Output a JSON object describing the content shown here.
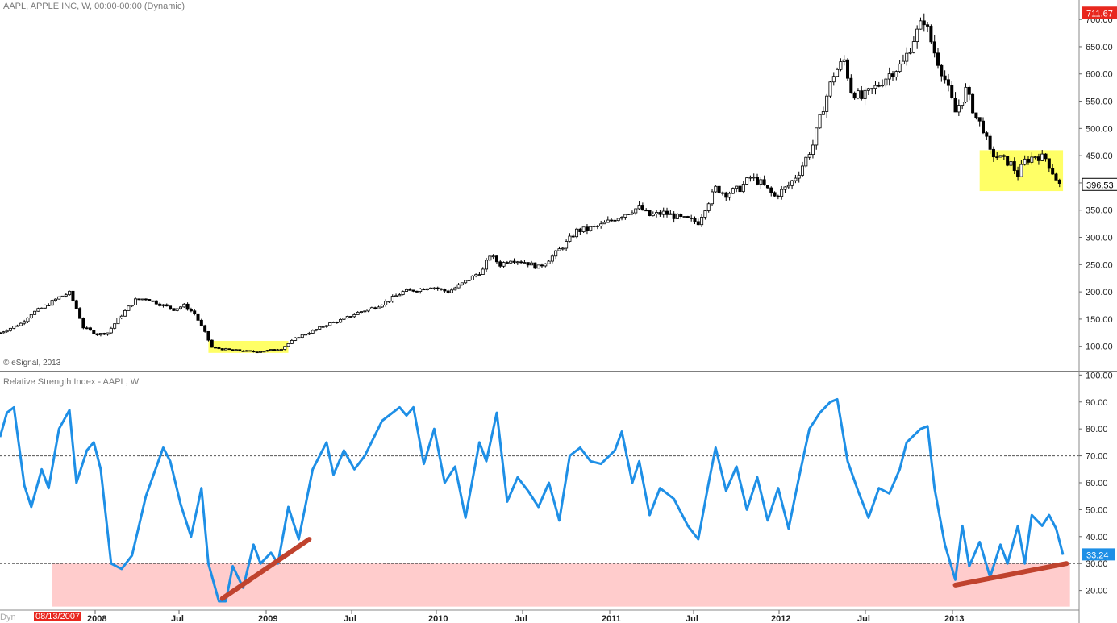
{
  "header": {
    "price_title": "AAPL, APPLE INC, W, 00:00-00:00 (Dynamic)",
    "rsi_title": "Relative Strength Index - AAPL, W",
    "copyright": "© eSignal, 2013",
    "dyn_label": "Dyn",
    "start_date": "08/13/2007"
  },
  "colors": {
    "rsi_line": "#1e8fe6",
    "trend_line": "#c0432e",
    "highlight_yellow": "#ffff66",
    "oversold_zone": "#ffcccc",
    "high_badge": "#e8271e",
    "rsi_badge": "#1e8fe6"
  },
  "chart_data": [
    {
      "type": "candlestick",
      "title": "AAPL, APPLE INC, W, 00:00-00:00 (Dynamic)",
      "ylim": [
        70,
        715
      ],
      "y_ticks": [
        "100.00",
        "150.00",
        "200.00",
        "250.00",
        "300.00",
        "350.00",
        "400.00",
        "450.00",
        "500.00",
        "550.00",
        "600.00",
        "650.00",
        "700.00"
      ],
      "x_ticks": [
        "2008",
        "Jul",
        "2009",
        "Jul",
        "2010",
        "Jul",
        "2011",
        "Jul",
        "2012",
        "Jul",
        "2013"
      ],
      "last_price": "396.53",
      "high_price": "711.67",
      "x_start": "2007-08-13",
      "x_end": "2013-04-15",
      "close_series": [
        [
          "2007-08-13",
          125
        ],
        [
          "2007-09-24",
          142
        ],
        [
          "2007-10-15",
          160
        ],
        [
          "2007-11-05",
          170
        ],
        [
          "2007-12-10",
          190
        ],
        [
          "2007-12-31",
          198
        ],
        [
          "2008-01-14",
          170
        ],
        [
          "2008-01-28",
          135
        ],
        [
          "2008-02-25",
          122
        ],
        [
          "2008-03-17",
          125
        ],
        [
          "2008-04-07",
          150
        ],
        [
          "2008-04-28",
          172
        ],
        [
          "2008-05-12",
          185
        ],
        [
          "2008-06-02",
          188
        ],
        [
          "2008-07-07",
          175
        ],
        [
          "2008-07-28",
          168
        ],
        [
          "2008-08-18",
          175
        ],
        [
          "2008-09-08",
          160
        ],
        [
          "2008-09-29",
          125
        ],
        [
          "2008-10-13",
          98
        ],
        [
          "2008-11-10",
          94
        ],
        [
          "2008-12-08",
          92
        ],
        [
          "2009-01-05",
          90
        ],
        [
          "2009-02-02",
          92
        ],
        [
          "2009-03-02",
          96
        ],
        [
          "2009-03-16",
          105
        ],
        [
          "2009-04-06",
          118
        ],
        [
          "2009-05-04",
          128
        ],
        [
          "2009-06-01",
          140
        ],
        [
          "2009-07-06",
          150
        ],
        [
          "2009-08-03",
          162
        ],
        [
          "2009-09-07",
          172
        ],
        [
          "2009-10-05",
          185
        ],
        [
          "2009-11-02",
          200
        ],
        [
          "2009-12-07",
          205
        ],
        [
          "2009-12-28",
          210
        ],
        [
          "2010-02-01",
          200
        ],
        [
          "2010-03-01",
          215
        ],
        [
          "2010-04-12",
          240
        ],
        [
          "2010-04-26",
          268
        ],
        [
          "2010-05-17",
          250
        ],
        [
          "2010-06-07",
          260
        ],
        [
          "2010-07-05",
          255
        ],
        [
          "2010-08-02",
          245
        ],
        [
          "2010-08-30",
          265
        ],
        [
          "2010-09-27",
          290
        ],
        [
          "2010-10-18",
          312
        ],
        [
          "2010-11-08",
          315
        ],
        [
          "2010-12-06",
          322
        ],
        [
          "2011-01-03",
          335
        ],
        [
          "2011-02-07",
          350
        ],
        [
          "2011-02-21",
          355
        ],
        [
          "2011-03-14",
          340
        ],
        [
          "2011-04-11",
          345
        ],
        [
          "2011-05-16",
          335
        ],
        [
          "2011-06-20",
          328
        ],
        [
          "2011-07-04",
          355
        ],
        [
          "2011-07-25",
          390
        ],
        [
          "2011-08-15",
          380
        ],
        [
          "2011-09-12",
          390
        ],
        [
          "2011-10-03",
          410
        ],
        [
          "2011-10-24",
          400
        ],
        [
          "2011-11-21",
          375
        ],
        [
          "2011-12-19",
          395
        ],
        [
          "2012-01-09",
          420
        ],
        [
          "2012-02-06",
          470
        ],
        [
          "2012-02-27",
          540
        ],
        [
          "2012-03-19",
          600
        ],
        [
          "2012-04-09",
          625
        ],
        [
          "2012-04-23",
          570
        ],
        [
          "2012-05-14",
          555
        ],
        [
          "2012-06-11",
          575
        ],
        [
          "2012-07-09",
          600
        ],
        [
          "2012-08-06",
          620
        ],
        [
          "2012-08-27",
          665
        ],
        [
          "2012-09-17",
          700
        ],
        [
          "2012-10-08",
          640
        ],
        [
          "2012-10-29",
          590
        ],
        [
          "2012-11-19",
          530
        ],
        [
          "2012-12-10",
          570
        ],
        [
          "2012-12-31",
          520
        ],
        [
          "2013-01-14",
          500
        ],
        [
          "2013-01-28",
          455
        ],
        [
          "2013-02-18",
          445
        ],
        [
          "2013-03-11",
          435
        ],
        [
          "2013-03-25",
          415
        ],
        [
          "2013-04-08",
          440
        ],
        [
          "2013-04-29",
          450
        ],
        [
          "2013-05-20",
          445
        ],
        [
          "2013-06-03",
          420
        ],
        [
          "2013-06-17",
          396.53
        ]
      ],
      "annotations": [
        {
          "label": "yellow box 2008-10 to 2009-03",
          "from": "2008-10-06",
          "to": "2009-03-16",
          "low": 88,
          "high": 110
        },
        {
          "label": "yellow box 2012-12 to 2013-06",
          "from": "2013-01-07",
          "to": "2013-06-24",
          "low": 385,
          "high": 460
        }
      ]
    },
    {
      "type": "line",
      "title": "Relative Strength Index - AAPL, W",
      "ylim": [
        13,
        101
      ],
      "y_ticks": [
        "20.00",
        "30.00",
        "40.00",
        "50.00",
        "60.00",
        "70.00",
        "80.00",
        "90.00",
        "100.00"
      ],
      "reference_lines": [
        70,
        30
      ],
      "last_value": "33.24",
      "oversold_zone": {
        "from": "2007-11-26",
        "to": "2013-07-08",
        "low": 14,
        "high": 30
      },
      "rsi_series": [
        [
          "2007-08-13",
          77
        ],
        [
          "2007-08-27",
          86
        ],
        [
          "2007-09-10",
          88
        ],
        [
          "2007-10-01",
          59
        ],
        [
          "2007-10-15",
          51
        ],
        [
          "2007-11-05",
          65
        ],
        [
          "2007-11-19",
          58
        ],
        [
          "2007-12-10",
          80
        ],
        [
          "2007-12-31",
          87
        ],
        [
          "2008-01-14",
          60
        ],
        [
          "2008-02-04",
          72
        ],
        [
          "2008-02-18",
          75
        ],
        [
          "2008-03-03",
          65
        ],
        [
          "2008-03-24",
          30
        ],
        [
          "2008-04-14",
          28
        ],
        [
          "2008-05-05",
          33
        ],
        [
          "2008-06-02",
          55
        ],
        [
          "2008-07-07",
          73
        ],
        [
          "2008-07-21",
          68
        ],
        [
          "2008-08-11",
          52
        ],
        [
          "2008-09-01",
          40
        ],
        [
          "2008-09-22",
          58
        ],
        [
          "2008-10-06",
          30
        ],
        [
          "2008-10-27",
          16
        ],
        [
          "2008-11-10",
          16
        ],
        [
          "2008-11-24",
          29
        ],
        [
          "2008-12-15",
          21
        ],
        [
          "2009-01-05",
          37
        ],
        [
          "2009-01-19",
          30
        ],
        [
          "2009-02-09",
          34
        ],
        [
          "2009-02-23",
          30
        ],
        [
          "2009-03-16",
          51
        ],
        [
          "2009-04-06",
          39
        ],
        [
          "2009-05-04",
          65
        ],
        [
          "2009-06-01",
          75
        ],
        [
          "2009-06-15",
          63
        ],
        [
          "2009-07-06",
          72
        ],
        [
          "2009-07-27",
          65
        ],
        [
          "2009-08-17",
          70
        ],
        [
          "2009-09-21",
          83
        ],
        [
          "2009-10-26",
          88
        ],
        [
          "2009-11-09",
          85
        ],
        [
          "2009-11-23",
          88
        ],
        [
          "2009-12-14",
          67
        ],
        [
          "2010-01-04",
          80
        ],
        [
          "2010-01-25",
          60
        ],
        [
          "2010-02-15",
          66
        ],
        [
          "2010-03-08",
          47
        ],
        [
          "2010-04-05",
          75
        ],
        [
          "2010-04-19",
          68
        ],
        [
          "2010-05-10",
          86
        ],
        [
          "2010-05-31",
          53
        ],
        [
          "2010-06-21",
          62
        ],
        [
          "2010-07-12",
          57
        ],
        [
          "2010-08-02",
          51
        ],
        [
          "2010-08-23",
          60
        ],
        [
          "2010-09-13",
          46
        ],
        [
          "2010-10-04",
          70
        ],
        [
          "2010-10-25",
          73
        ],
        [
          "2010-11-15",
          68
        ],
        [
          "2010-12-06",
          67
        ],
        [
          "2011-01-03",
          72
        ],
        [
          "2011-01-17",
          79
        ],
        [
          "2011-02-07",
          60
        ],
        [
          "2011-02-21",
          68
        ],
        [
          "2011-03-14",
          48
        ],
        [
          "2011-04-04",
          58
        ],
        [
          "2011-05-02",
          54
        ],
        [
          "2011-05-30",
          44
        ],
        [
          "2011-06-20",
          39
        ],
        [
          "2011-07-11",
          60
        ],
        [
          "2011-07-25",
          73
        ],
        [
          "2011-08-15",
          57
        ],
        [
          "2011-09-05",
          66
        ],
        [
          "2011-09-26",
          50
        ],
        [
          "2011-10-17",
          62
        ],
        [
          "2011-11-07",
          46
        ],
        [
          "2011-11-28",
          58
        ],
        [
          "2011-12-19",
          43
        ],
        [
          "2012-01-09",
          62
        ],
        [
          "2012-01-30",
          80
        ],
        [
          "2012-02-20",
          86
        ],
        [
          "2012-03-12",
          90
        ],
        [
          "2012-03-26",
          91
        ],
        [
          "2012-04-16",
          68
        ],
        [
          "2012-05-07",
          57
        ],
        [
          "2012-05-28",
          47
        ],
        [
          "2012-06-18",
          58
        ],
        [
          "2012-07-09",
          56
        ],
        [
          "2012-07-30",
          65
        ],
        [
          "2012-08-13",
          75
        ],
        [
          "2012-09-10",
          80
        ],
        [
          "2012-09-24",
          81
        ],
        [
          "2012-10-08",
          58
        ],
        [
          "2012-10-29",
          37
        ],
        [
          "2012-11-19",
          24
        ],
        [
          "2012-12-03",
          44
        ],
        [
          "2012-12-17",
          29
        ],
        [
          "2013-01-07",
          38
        ],
        [
          "2013-01-28",
          25
        ],
        [
          "2013-02-18",
          37
        ],
        [
          "2013-03-04",
          30
        ],
        [
          "2013-03-25",
          44
        ],
        [
          "2013-04-08",
          30
        ],
        [
          "2013-04-22",
          48
        ],
        [
          "2013-05-13",
          44
        ],
        [
          "2013-05-27",
          48
        ],
        [
          "2013-06-10",
          43
        ],
        [
          "2013-06-24",
          33.24
        ]
      ],
      "trend_lines": [
        {
          "from": [
            "2008-11-03",
            17
          ],
          "to": [
            "2009-04-27",
            39
          ]
        },
        {
          "from": [
            "2012-11-19",
            22
          ],
          "to": [
            "2013-07-01",
            30
          ]
        }
      ]
    }
  ]
}
